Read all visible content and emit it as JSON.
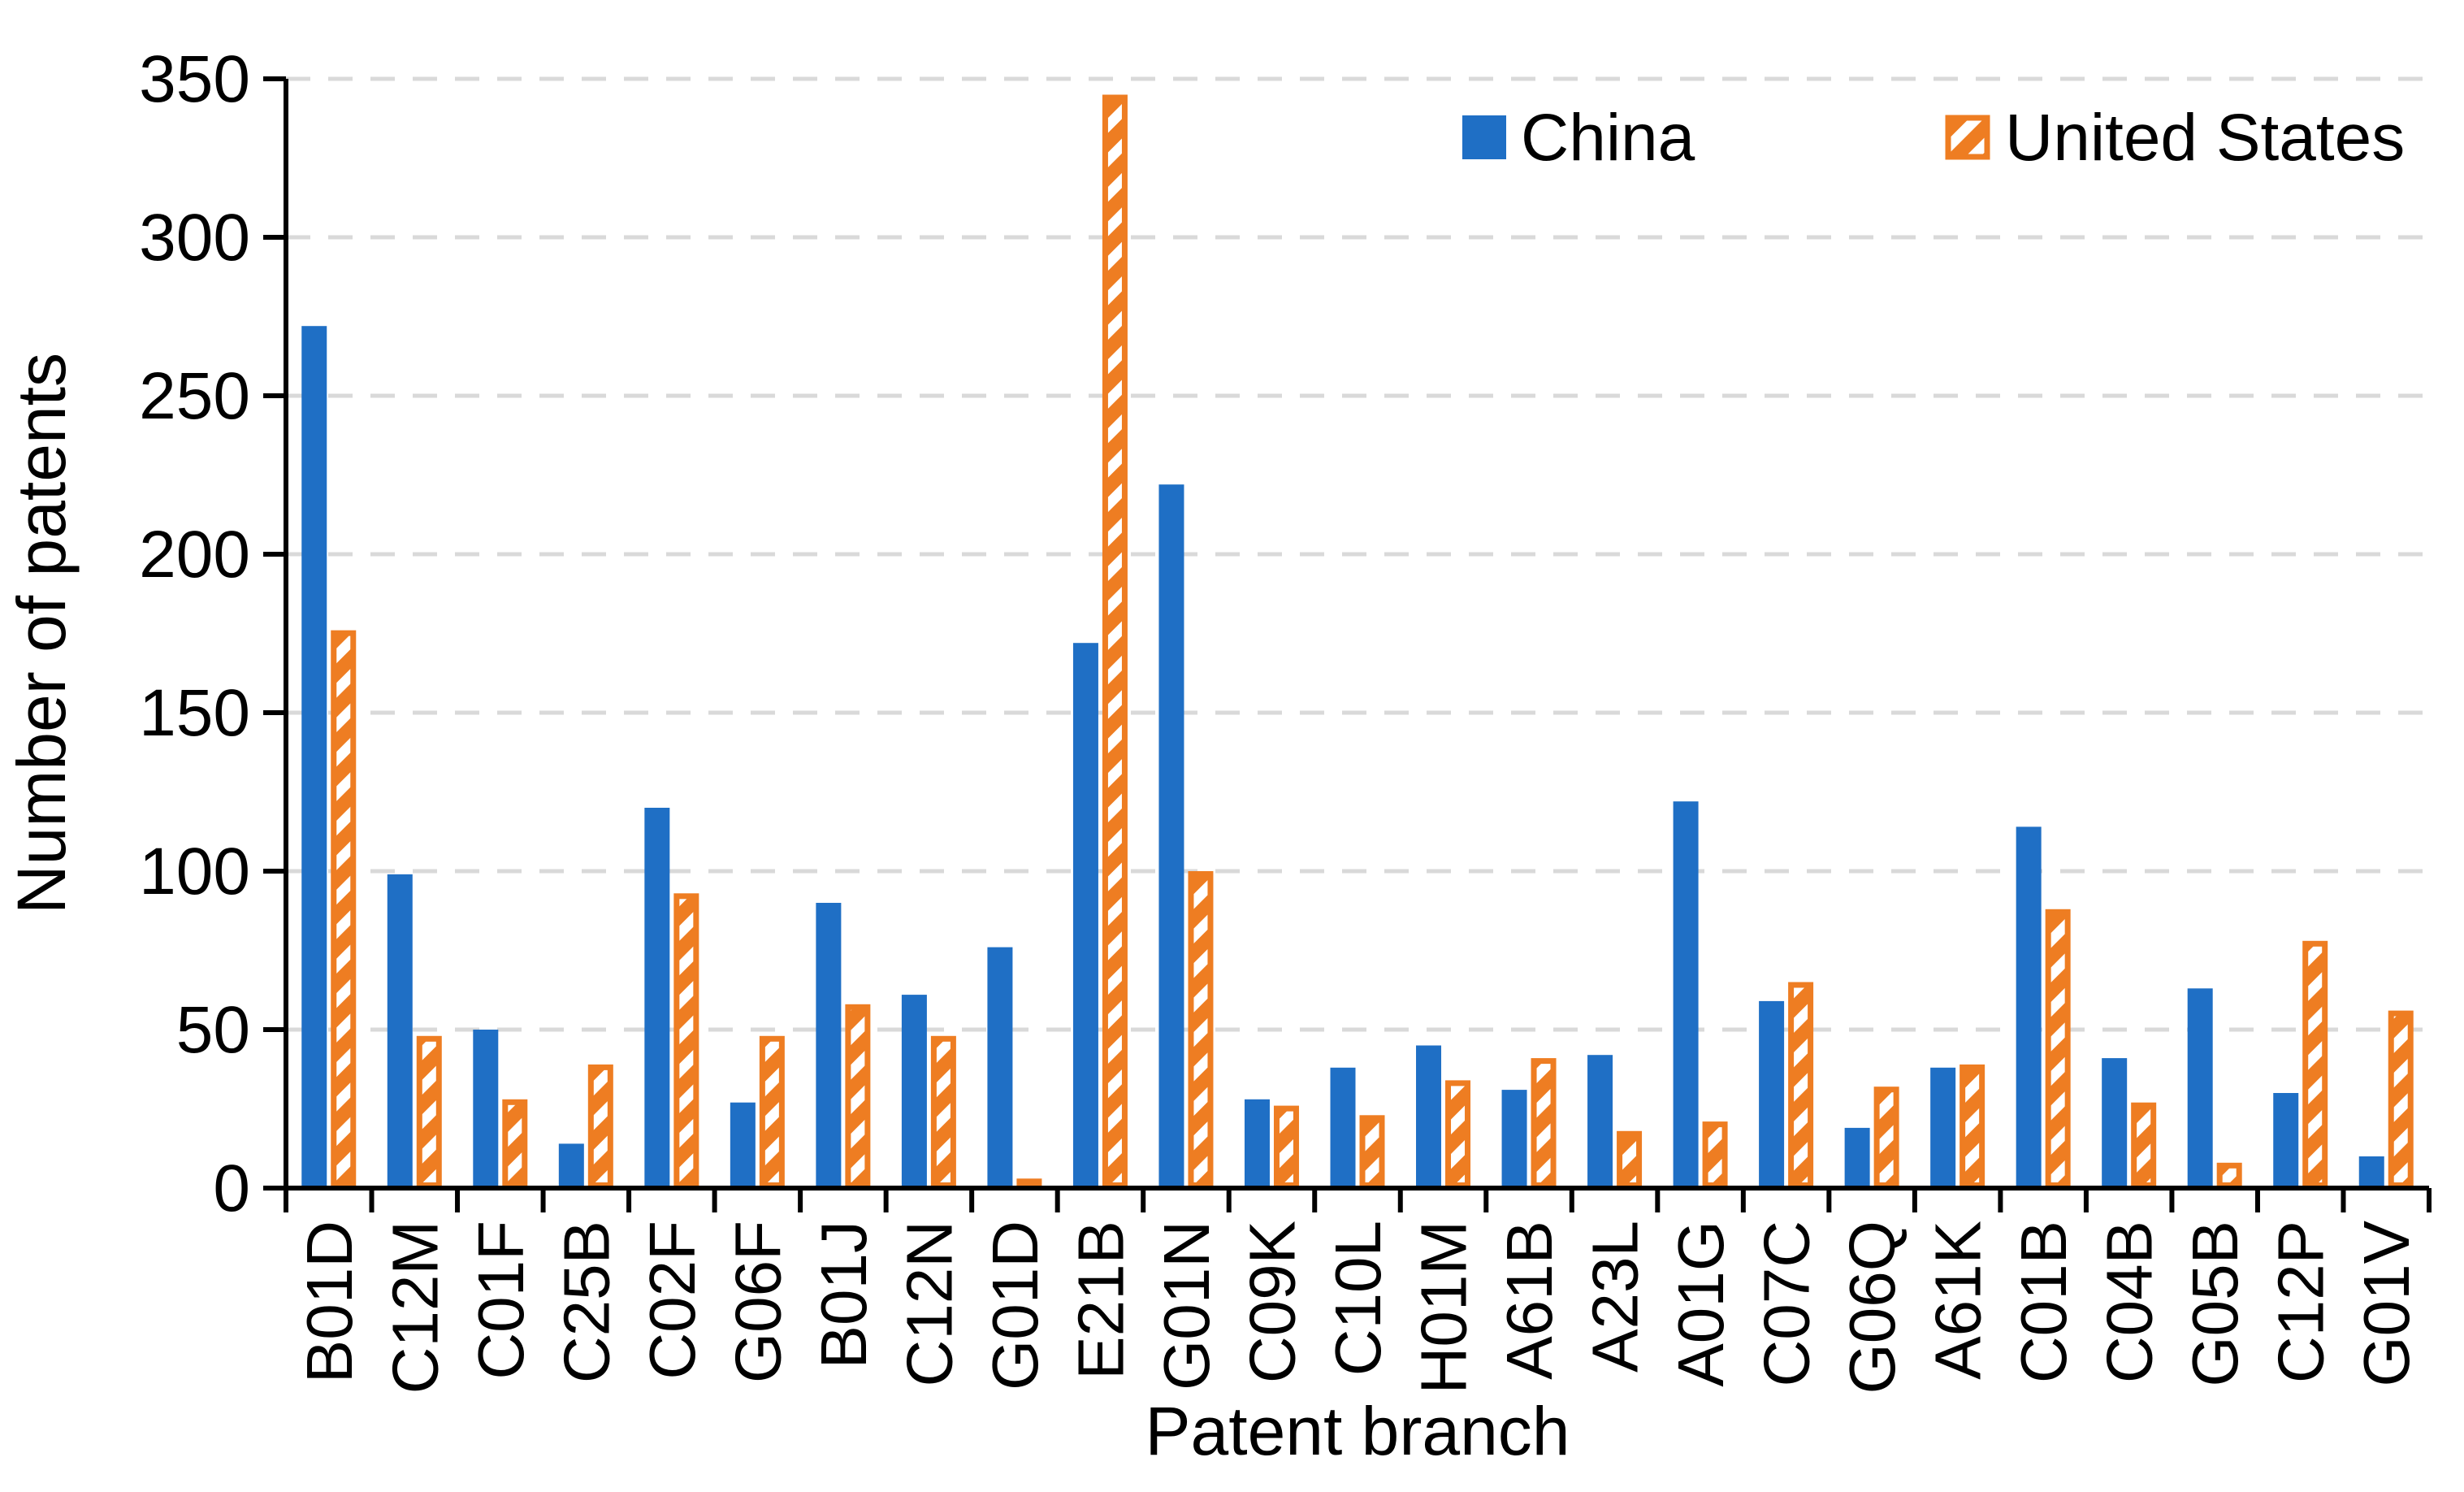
{
  "chart_data": {
    "type": "bar",
    "title": "",
    "xlabel": "Patent branch",
    "ylabel": "Number of patents",
    "ylim": [
      0,
      350
    ],
    "ytick_step": 50,
    "yticks": [
      0,
      50,
      100,
      150,
      200,
      250,
      300,
      350
    ],
    "grid": "horizontal dashed gridlines at every 50, none at 0",
    "grid_color": "#d9d9d9",
    "axis_color": "#000000",
    "legend_position": "top-right inside plot area",
    "x_tick_label_rotation": "90deg reading bottom-to-top",
    "categories": [
      "B01D",
      "C12M",
      "C01F",
      "C25B",
      "C02F",
      "G06F",
      "B01J",
      "C12N",
      "G01D",
      "E21B",
      "G01N",
      "C09K",
      "C10L",
      "H01M",
      "A61B",
      "A23L",
      "A01G",
      "C07C",
      "G06Q",
      "A61K",
      "C01B",
      "C04B",
      "G05B",
      "C12P",
      "G01V"
    ],
    "series": [
      {
        "name": "China",
        "color": "#1f6fc5",
        "pattern": "solid",
        "values": [
          272,
          99,
          50,
          14,
          120,
          27,
          90,
          61,
          76,
          172,
          222,
          28,
          38,
          45,
          31,
          42,
          122,
          59,
          19,
          38,
          114,
          41,
          63,
          30,
          10
        ]
      },
      {
        "name": "United States",
        "color": "#ee7d22",
        "pattern": "diagonal-hatch",
        "values": [
          176,
          48,
          28,
          39,
          93,
          48,
          58,
          48,
          3,
          345,
          100,
          26,
          23,
          34,
          41,
          18,
          21,
          65,
          32,
          39,
          88,
          27,
          8,
          78,
          56
        ]
      }
    ]
  }
}
